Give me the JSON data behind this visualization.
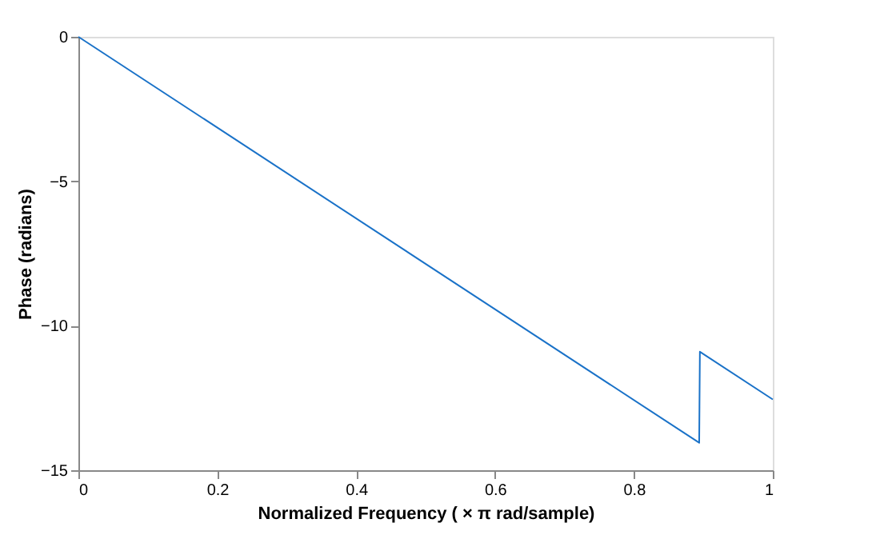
{
  "chart_data": {
    "type": "line",
    "xlabel": "Normalized Frequency ( × π rad/sample)",
    "ylabel": "Phase (radians)",
    "x": [
      0,
      0.894,
      0.895,
      1
    ],
    "series": [
      {
        "color": "#1a72c8",
        "values": [
          0,
          -14.05,
          -10.9,
          -12.55
        ]
      }
    ],
    "xlim": [
      0,
      1
    ],
    "xticks": [
      0,
      0.2,
      0.4,
      0.6,
      0.8,
      1
    ],
    "ylim": [
      -15,
      0
    ],
    "yticks": [
      -15,
      -10,
      -5,
      0
    ],
    "grid": false,
    "legend": false
  }
}
